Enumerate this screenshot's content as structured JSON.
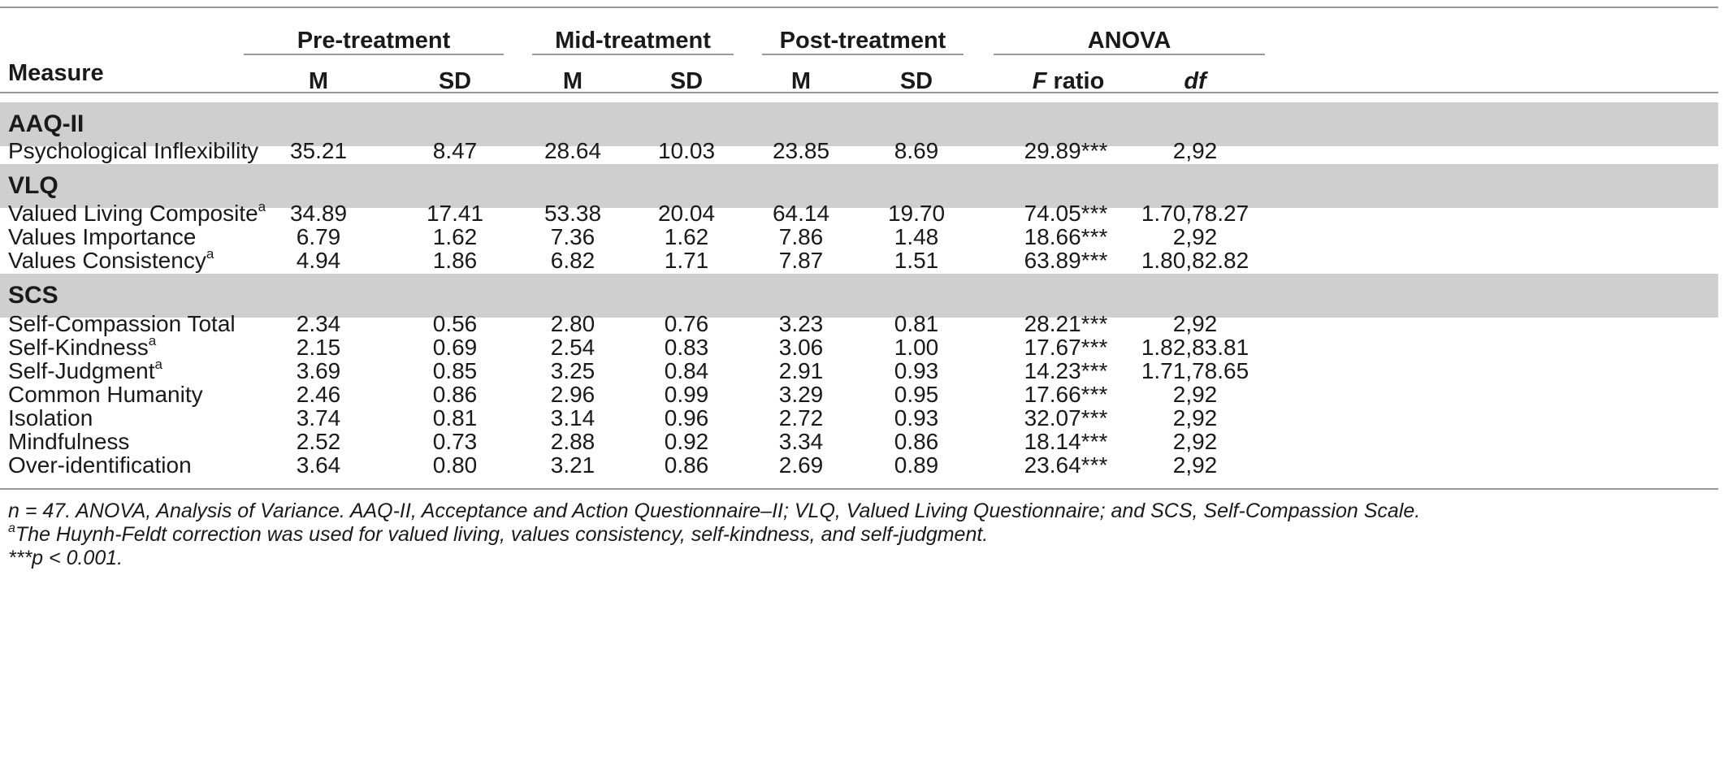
{
  "header": {
    "measure": "Measure",
    "groups": [
      "Pre-treatment",
      "Mid-treatment",
      "Post-treatment",
      "ANOVA"
    ],
    "sub": {
      "m": "M",
      "sd": "SD",
      "f_italic": "F",
      "f_rest": " ratio",
      "df": "df"
    }
  },
  "sections": [
    {
      "title": "AAQ-II",
      "rows": [
        {
          "label": "Psychological Inflexibility",
          "sup": "",
          "values": [
            "35.21",
            "8.47",
            "28.64",
            "10.03",
            "23.85",
            "8.69",
            "29.89***",
            "2,92"
          ]
        }
      ]
    },
    {
      "title": "VLQ",
      "rows": [
        {
          "label": "Valued Living Composite",
          "sup": "a",
          "values": [
            "34.89",
            "17.41",
            "53.38",
            "20.04",
            "64.14",
            "19.70",
            "74.05***",
            "1.70,78.27"
          ]
        },
        {
          "label": "Values Importance",
          "sup": "",
          "values": [
            "6.79",
            "1.62",
            "7.36",
            "1.62",
            "7.86",
            "1.48",
            "18.66***",
            "2,92"
          ]
        },
        {
          "label": "Values Consistency",
          "sup": "a",
          "values": [
            "4.94",
            "1.86",
            "6.82",
            "1.71",
            "7.87",
            "1.51",
            "63.89***",
            "1.80,82.82"
          ]
        }
      ]
    },
    {
      "title": "SCS",
      "rows": [
        {
          "label": "Self-Compassion Total",
          "sup": "",
          "values": [
            "2.34",
            "0.56",
            "2.80",
            "0.76",
            "3.23",
            "0.81",
            "28.21***",
            "2,92"
          ]
        },
        {
          "label": "Self-Kindness",
          "sup": "a",
          "values": [
            "2.15",
            "0.69",
            "2.54",
            "0.83",
            "3.06",
            "1.00",
            "17.67***",
            "1.82,83.81"
          ]
        },
        {
          "label": "Self-Judgment",
          "sup": "a",
          "values": [
            "3.69",
            "0.85",
            "3.25",
            "0.84",
            "2.91",
            "0.93",
            "14.23***",
            "1.71,78.65"
          ]
        },
        {
          "label": "Common Humanity",
          "sup": "",
          "values": [
            "2.46",
            "0.86",
            "2.96",
            "0.99",
            "3.29",
            "0.95",
            "17.66***",
            "2,92"
          ]
        },
        {
          "label": "Isolation",
          "sup": "",
          "values": [
            "3.74",
            "0.81",
            "3.14",
            "0.96",
            "2.72",
            "0.93",
            "32.07***",
            "2,92"
          ]
        },
        {
          "label": "Mindfulness",
          "sup": "",
          "values": [
            "2.52",
            "0.73",
            "2.88",
            "0.92",
            "3.34",
            "0.86",
            "18.14***",
            "2,92"
          ]
        },
        {
          "label": "Over-identification",
          "sup": "",
          "values": [
            "3.64",
            "0.80",
            "3.21",
            "0.86",
            "2.69",
            "0.89",
            "23.64***",
            "2,92"
          ]
        }
      ]
    }
  ],
  "notes": {
    "note1": "n = 47. ANOVA, Analysis of Variance. AAQ-II, Acceptance and Action Questionnaire–II; VLQ, Valued Living Questionnaire; and SCS, Self-Compassion Scale.",
    "note2_sup": "a",
    "note2": "The Huynh-Feldt correction was used for valued living, values consistency, self-kindness, and self-judgment.",
    "note3": "***p < 0.001."
  }
}
